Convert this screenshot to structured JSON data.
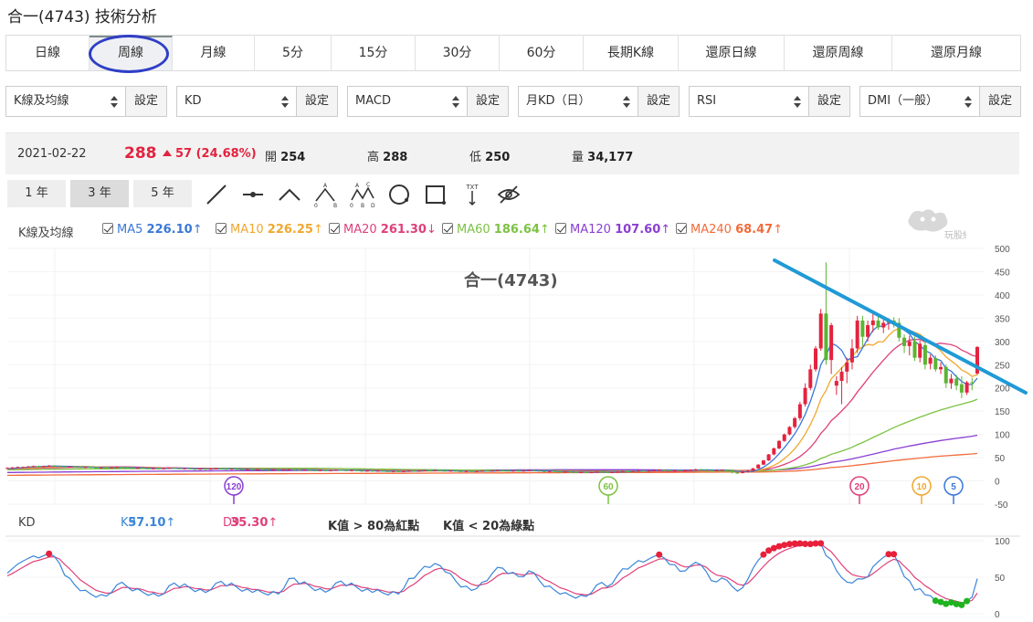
{
  "page": {
    "title": "合一(4743) 技術分析"
  },
  "tabs": [
    {
      "label": "日線",
      "active": false
    },
    {
      "label": "周線",
      "active": true
    },
    {
      "label": "月線",
      "active": false
    },
    {
      "label": "5分",
      "active": false
    },
    {
      "label": "15分",
      "active": false
    },
    {
      "label": "30分",
      "active": false
    },
    {
      "label": "60分",
      "active": false
    },
    {
      "label": "長期K線",
      "active": false
    },
    {
      "label": "還原日線",
      "active": false
    },
    {
      "label": "還原周線",
      "active": false
    },
    {
      "label": "還原月線",
      "active": false
    }
  ],
  "selectors": [
    {
      "value": "K線及均線",
      "button": "設定"
    },
    {
      "value": "KD",
      "button": "設定"
    },
    {
      "value": "MACD",
      "button": "設定"
    },
    {
      "value": "月KD（日）",
      "button": "設定"
    },
    {
      "value": "RSI",
      "button": "設定"
    },
    {
      "value": "DMI（一般）",
      "button": "設定"
    }
  ],
  "quote": {
    "date": "2021-02-22",
    "price": "288",
    "change": "57 (24.68%)",
    "open_label": "開",
    "open": "254",
    "high_label": "高",
    "high": "288",
    "low_label": "低",
    "low": "250",
    "volume_label": "量",
    "volume": "34,177"
  },
  "ranges": [
    "1 年",
    "3 年",
    "5 年"
  ],
  "active_range": "3 年",
  "tools": [
    "line-icon",
    "horizontal-line-icon",
    "angle-icon",
    "abc-pattern-icon",
    "abcd-pattern-icon",
    "circle-icon",
    "rectangle-icon",
    "text-icon",
    "hide-icon"
  ],
  "tool_text_label": "TXT",
  "tool_pattern_labels": {
    "a": "A",
    "b": "B",
    "c": "C",
    "d": "D",
    "zero": "0"
  },
  "watermark": "玩股網",
  "ma_legend": {
    "title": "K線及均線",
    "items": [
      {
        "name": "MA5",
        "value": "226.10",
        "dir": "↑",
        "color": "#3a78d8"
      },
      {
        "name": "MA10",
        "value": "226.25",
        "dir": "↑",
        "color": "#f0a830"
      },
      {
        "name": "MA20",
        "value": "261.30",
        "dir": "↓",
        "color": "#e0407a"
      },
      {
        "name": "MA60",
        "value": "186.64",
        "dir": "↑",
        "color": "#7cc242"
      },
      {
        "name": "MA120",
        "value": "107.60",
        "dir": "↑",
        "color": "#8a3fd1"
      },
      {
        "name": "MA240",
        "value": "68.47",
        "dir": "↑",
        "color": "#f26b3a"
      }
    ]
  },
  "kd_legend": {
    "title": "KD",
    "k_label": "K9",
    "k_value": "57.10",
    "k_dir": "↑",
    "d_label": "D9",
    "d_value": "35.30",
    "d_dir": "↑",
    "note_red": "K值 > 80為紅點",
    "note_green": "K值 < 20為綠點"
  },
  "colors": {
    "up": "#e3233f",
    "down": "#5cb531",
    "k_line": "#3a86d8",
    "d_line": "#e0407a",
    "trendline": "#1f9ad6"
  },
  "chart_data": [
    {
      "type": "candlestick",
      "title": "合一(4743)",
      "ylim": [
        -50,
        500
      ],
      "yticks": [
        "500",
        "450",
        "400",
        "350",
        "300",
        "250",
        "200",
        "150",
        "100",
        "50",
        "0",
        "-50"
      ],
      "ma_markers": [
        {
          "label": "120",
          "color": "#8a3fd1"
        },
        {
          "label": "60",
          "color": "#7cc242"
        },
        {
          "label": "20",
          "color": "#e0407a"
        },
        {
          "label": "10",
          "color": "#f0a830"
        },
        {
          "label": "5",
          "color": "#3a78d8"
        }
      ],
      "candles": [
        [
          27,
          29,
          26,
          28
        ],
        [
          28,
          30,
          27,
          29
        ],
        [
          29,
          31,
          28,
          30
        ],
        [
          30,
          31,
          29,
          30
        ],
        [
          30,
          32,
          29,
          31
        ],
        [
          31,
          33,
          30,
          32
        ],
        [
          32,
          33,
          30,
          31
        ],
        [
          31,
          33,
          30,
          32
        ],
        [
          32,
          34,
          31,
          33
        ],
        [
          33,
          34,
          31,
          32
        ],
        [
          32,
          33,
          30,
          31
        ],
        [
          31,
          32,
          29,
          30
        ],
        [
          30,
          32,
          29,
          31
        ],
        [
          31,
          32,
          29,
          30
        ],
        [
          30,
          31,
          28,
          29
        ],
        [
          29,
          31,
          28,
          30
        ],
        [
          30,
          31,
          28,
          29
        ],
        [
          29,
          30,
          27,
          28
        ],
        [
          28,
          30,
          27,
          29
        ],
        [
          29,
          30,
          27,
          28
        ],
        [
          28,
          30,
          27,
          29
        ],
        [
          29,
          31,
          28,
          30
        ],
        [
          30,
          31,
          28,
          29
        ],
        [
          29,
          30,
          27,
          28
        ],
        [
          28,
          29,
          26,
          27
        ],
        [
          27,
          29,
          26,
          28
        ],
        [
          28,
          29,
          26,
          27
        ],
        [
          27,
          28,
          25,
          26
        ],
        [
          26,
          28,
          25,
          27
        ],
        [
          27,
          28,
          25,
          26
        ],
        [
          26,
          28,
          25,
          27
        ],
        [
          27,
          29,
          26,
          28
        ],
        [
          28,
          29,
          26,
          27
        ],
        [
          27,
          28,
          25,
          26
        ],
        [
          26,
          28,
          25,
          27
        ],
        [
          27,
          28,
          25,
          26
        ],
        [
          26,
          27,
          24,
          25
        ],
        [
          25,
          27,
          24,
          26
        ],
        [
          26,
          27,
          24,
          25
        ],
        [
          25,
          27,
          24,
          26
        ],
        [
          26,
          28,
          25,
          27
        ],
        [
          27,
          28,
          25,
          26
        ],
        [
          26,
          27,
          24,
          25
        ],
        [
          25,
          27,
          24,
          26
        ],
        [
          26,
          27,
          24,
          25
        ],
        [
          25,
          26,
          23,
          24
        ],
        [
          24,
          26,
          23,
          25
        ],
        [
          25,
          26,
          23,
          24
        ],
        [
          24,
          26,
          23,
          25
        ],
        [
          25,
          26,
          23,
          24
        ],
        [
          24,
          25,
          22,
          23
        ],
        [
          23,
          25,
          22,
          24
        ],
        [
          24,
          25,
          22,
          23
        ],
        [
          23,
          25,
          22,
          24
        ],
        [
          24,
          26,
          23,
          25
        ],
        [
          25,
          26,
          23,
          24
        ],
        [
          24,
          25,
          22,
          23
        ],
        [
          23,
          25,
          22,
          24
        ],
        [
          24,
          25,
          22,
          23
        ],
        [
          23,
          24,
          21,
          22
        ],
        [
          22,
          24,
          21,
          23
        ],
        [
          23,
          24,
          21,
          22
        ],
        [
          22,
          24,
          21,
          23
        ],
        [
          23,
          25,
          22,
          24
        ],
        [
          24,
          25,
          22,
          23
        ],
        [
          23,
          24,
          21,
          22
        ],
        [
          22,
          24,
          21,
          23
        ],
        [
          23,
          24,
          21,
          22
        ],
        [
          22,
          23,
          20,
          21
        ],
        [
          21,
          23,
          20,
          22
        ],
        [
          22,
          23,
          20,
          21
        ],
        [
          21,
          23,
          20,
          22
        ],
        [
          22,
          23,
          20,
          21
        ],
        [
          21,
          22,
          19,
          20
        ],
        [
          20,
          22,
          19,
          21
        ],
        [
          21,
          22,
          19,
          20
        ],
        [
          20,
          22,
          19,
          21
        ],
        [
          21,
          23,
          20,
          22
        ],
        [
          22,
          23,
          20,
          21
        ],
        [
          21,
          23,
          20,
          22
        ],
        [
          22,
          24,
          21,
          23
        ],
        [
          23,
          24,
          21,
          22
        ],
        [
          22,
          24,
          21,
          23
        ],
        [
          23,
          24,
          21,
          22
        ],
        [
          22,
          23,
          20,
          21
        ],
        [
          21,
          23,
          20,
          22
        ],
        [
          22,
          23,
          20,
          21
        ],
        [
          21,
          22,
          19,
          20
        ],
        [
          20,
          22,
          19,
          21
        ],
        [
          21,
          22,
          19,
          20
        ],
        [
          20,
          22,
          19,
          21
        ],
        [
          21,
          23,
          20,
          22
        ],
        [
          22,
          23,
          20,
          21
        ],
        [
          21,
          23,
          20,
          22
        ],
        [
          22,
          24,
          21,
          23
        ],
        [
          23,
          24,
          21,
          22
        ],
        [
          22,
          23,
          20,
          21
        ],
        [
          21,
          23,
          20,
          22
        ],
        [
          22,
          23,
          20,
          21
        ],
        [
          21,
          23,
          20,
          22
        ],
        [
          22,
          24,
          21,
          23
        ],
        [
          23,
          24,
          21,
          22
        ],
        [
          22,
          23,
          20,
          21
        ],
        [
          21,
          22,
          19,
          20
        ],
        [
          20,
          22,
          19,
          21
        ],
        [
          21,
          22,
          19,
          20
        ],
        [
          20,
          21,
          18,
          19
        ],
        [
          19,
          21,
          18,
          20
        ],
        [
          20,
          21,
          18,
          19
        ],
        [
          19,
          20,
          17,
          18
        ],
        [
          18,
          20,
          17,
          19
        ],
        [
          19,
          20,
          17,
          18
        ],
        [
          18,
          20,
          17,
          19
        ],
        [
          19,
          21,
          18,
          20
        ],
        [
          20,
          21,
          18,
          19
        ],
        [
          19,
          20,
          17,
          18
        ],
        [
          18,
          20,
          17,
          19
        ],
        [
          19,
          21,
          18,
          20
        ],
        [
          20,
          22,
          19,
          21
        ],
        [
          21,
          22,
          19,
          20
        ],
        [
          20,
          22,
          19,
          21
        ],
        [
          21,
          23,
          20,
          22
        ],
        [
          22,
          23,
          20,
          21
        ],
        [
          21,
          23,
          20,
          22
        ],
        [
          22,
          24,
          21,
          23
        ],
        [
          23,
          25,
          22,
          24
        ],
        [
          24,
          25,
          22,
          23
        ],
        [
          23,
          24,
          21,
          22
        ],
        [
          22,
          24,
          21,
          23
        ],
        [
          23,
          24,
          21,
          22
        ],
        [
          22,
          24,
          21,
          23
        ],
        [
          23,
          25,
          22,
          24
        ],
        [
          24,
          26,
          23,
          25
        ],
        [
          25,
          26,
          23,
          24
        ],
        [
          24,
          25,
          22,
          23
        ],
        [
          23,
          24,
          21,
          22
        ],
        [
          22,
          24,
          21,
          23
        ],
        [
          23,
          25,
          22,
          24
        ],
        [
          24,
          25,
          22,
          23
        ],
        [
          23,
          24,
          16,
          18
        ],
        [
          18,
          22,
          15,
          17
        ],
        [
          17,
          22,
          16,
          20
        ],
        [
          20,
          24,
          18,
          22
        ],
        [
          22,
          28,
          21,
          27
        ],
        [
          27,
          36,
          26,
          35
        ],
        [
          35,
          45,
          34,
          44
        ],
        [
          44,
          58,
          43,
          57
        ],
        [
          57,
          72,
          55,
          70
        ],
        [
          70,
          88,
          68,
          86
        ],
        [
          86,
          102,
          84,
          100
        ],
        [
          100,
          118,
          98,
          116
        ],
        [
          116,
          138,
          112,
          135
        ],
        [
          135,
          170,
          130,
          165
        ],
        [
          165,
          210,
          160,
          200
        ],
        [
          200,
          250,
          195,
          240
        ],
        [
          240,
          290,
          235,
          285
        ],
        [
          285,
          370,
          280,
          360
        ],
        [
          360,
          470,
          250,
          260
        ],
        [
          260,
          340,
          230,
          335
        ],
        [
          205,
          225,
          185,
          215
        ],
        [
          215,
          245,
          165,
          235
        ],
        [
          235,
          265,
          210,
          255
        ],
        [
          255,
          305,
          240,
          285
        ],
        [
          285,
          355,
          275,
          345
        ],
        [
          345,
          355,
          290,
          310
        ],
        [
          310,
          345,
          300,
          335
        ],
        [
          335,
          360,
          320,
          345
        ],
        [
          345,
          358,
          325,
          330
        ],
        [
          330,
          352,
          318,
          340
        ],
        [
          340,
          350,
          325,
          345
        ],
        [
          345,
          352,
          330,
          338
        ],
        [
          340,
          350,
          300,
          308
        ],
        [
          308,
          315,
          275,
          290
        ],
        [
          290,
          312,
          270,
          300
        ],
        [
          300,
          310,
          258,
          265
        ],
        [
          265,
          302,
          255,
          295
        ],
        [
          292,
          300,
          240,
          250
        ],
        [
          252,
          272,
          240,
          265
        ],
        [
          264,
          270,
          235,
          240
        ],
        [
          240,
          255,
          230,
          245
        ],
        [
          245,
          250,
          200,
          210
        ],
        [
          210,
          230,
          198,
          220
        ],
        [
          220,
          228,
          195,
          205
        ],
        [
          208,
          225,
          178,
          190
        ],
        [
          190,
          215,
          185,
          212
        ],
        [
          212,
          222,
          195,
          210
        ],
        [
          231,
          290,
          228,
          288
        ]
      ],
      "ma_series": {
        "MA5": {
          "color": "#3a78d8"
        },
        "MA10": {
          "color": "#f0a830"
        },
        "MA20": {
          "color": "#e0407a"
        },
        "MA60": {
          "color": "#7cc242"
        },
        "MA120": {
          "color": "#8a3fd1"
        },
        "MA240": {
          "color": "#f26b3a"
        }
      }
    },
    {
      "type": "line",
      "title": "KD",
      "ylim": [
        0,
        100
      ],
      "yticks": [
        "100",
        "50",
        "0"
      ],
      "series": [
        {
          "name": "K9",
          "color": "#3a86d8"
        },
        {
          "name": "D9",
          "color": "#e0407a"
        }
      ]
    }
  ]
}
